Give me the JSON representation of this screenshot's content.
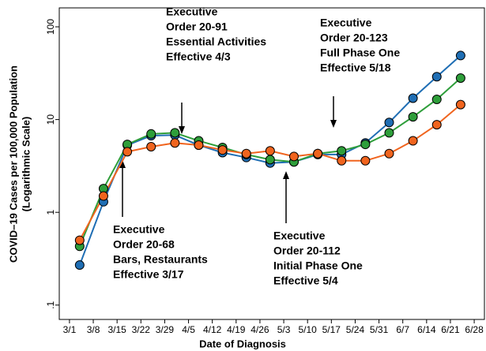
{
  "chart_data": {
    "type": "line",
    "y_label": [
      "COVID–19 Cases per 100,000 Population",
      "(Logarithmic Scale)"
    ],
    "x_label": "Date of Diagnosis",
    "log_y": true,
    "xlim": [
      "2/27",
      "7/1"
    ],
    "xticks": [
      "3/1",
      "3/8",
      "3/15",
      "3/22",
      "3/29",
      "4/5",
      "4/12",
      "4/19",
      "4/26",
      "5/3",
      "5/10",
      "5/17",
      "5/24",
      "5/31",
      "6/7",
      "6/14",
      "6/21",
      "6/28"
    ],
    "ylim": [
      0.07,
      160
    ],
    "yticks": [
      {
        "value": 0.1,
        "label": ".1"
      },
      1,
      10,
      100
    ],
    "x": [
      "3/4",
      "3/11",
      "3/18",
      "3/25",
      "4/1",
      "4/8",
      "4/15",
      "4/22",
      "4/29",
      "5/6",
      "5/13",
      "5/20",
      "5/27",
      "6/3",
      "6/10",
      "6/17",
      "6/24"
    ],
    "series": [
      {
        "color": "#1f6eb4",
        "values": [
          0.27,
          1.3,
          5.3,
          6.7,
          6.8,
          5.3,
          4.4,
          3.9,
          3.4,
          3.5,
          4.2,
          4.2,
          5.6,
          9.3,
          17,
          29,
          49
        ]
      },
      {
        "color": "#2e9e3a",
        "values": [
          0.43,
          1.8,
          5.4,
          7.0,
          7.2,
          5.9,
          5.0,
          4.2,
          3.7,
          3.5,
          4.3,
          4.6,
          5.4,
          7.2,
          10.7,
          16.5,
          28
        ]
      },
      {
        "color": "#f0641e",
        "values": [
          0.5,
          1.5,
          4.5,
          5.1,
          5.6,
          5.3,
          4.7,
          4.3,
          4.6,
          4.0,
          4.3,
          3.6,
          3.6,
          4.3,
          5.9,
          8.8,
          14.5
        ]
      }
    ],
    "annotations": [
      [
        "Executive",
        "Order 20-91",
        "Essential Activities",
        "Effective 4/3"
      ],
      [
        "Executive",
        "Order 20-123",
        "Full Phase One",
        "Effective 5/18"
      ],
      [
        "Executive",
        "Order 20-68",
        "Bars, Restaurants",
        "Effective 3/17"
      ],
      [
        "Executive",
        "Order 20-112",
        "Initial Phase One",
        "Effective 5/4"
      ]
    ]
  }
}
